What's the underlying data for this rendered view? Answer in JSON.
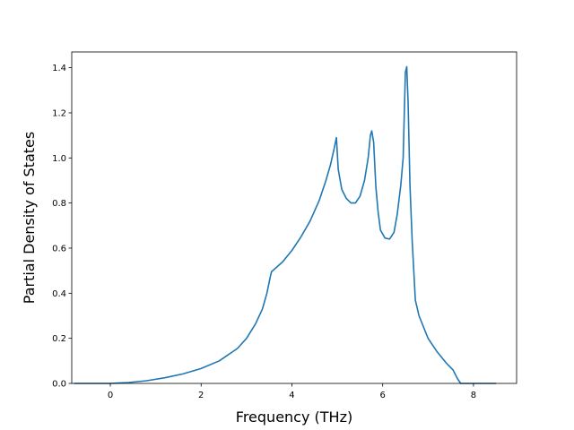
{
  "chart_data": {
    "type": "line",
    "title": "",
    "xlabel": "Frequency (THz)",
    "ylabel": "Partial Density of States",
    "xlim": [
      -0.85,
      8.95
    ],
    "ylim": [
      0.0,
      1.47
    ],
    "xticks": [
      0,
      2,
      4,
      6,
      8
    ],
    "xtick_labels": [
      "0",
      "2",
      "4",
      "6",
      "8"
    ],
    "yticks": [
      0.0,
      0.2,
      0.4,
      0.6,
      0.8,
      1.0,
      1.2,
      1.4
    ],
    "ytick_labels": [
      "0.0",
      "0.2",
      "0.4",
      "0.6",
      "0.8",
      "1.0",
      "1.2",
      "1.4"
    ],
    "grid": false,
    "legend": "none",
    "series": [
      {
        "color": "#1f77b4",
        "x": [
          -0.8,
          -0.4,
          0.0,
          0.4,
          0.8,
          1.2,
          1.6,
          2.0,
          2.4,
          2.8,
          3.0,
          3.2,
          3.35,
          3.45,
          3.52,
          3.55,
          3.8,
          4.0,
          4.2,
          4.4,
          4.6,
          4.75,
          4.85,
          4.93,
          4.98,
          5.02,
          5.1,
          5.2,
          5.3,
          5.4,
          5.5,
          5.6,
          5.68,
          5.73,
          5.76,
          5.8,
          5.85,
          5.9,
          5.95,
          6.05,
          6.15,
          6.25,
          6.32,
          6.4,
          6.45,
          6.5,
          6.53,
          6.56,
          6.6,
          6.65,
          6.72,
          6.8,
          7.0,
          7.2,
          7.4,
          7.55,
          7.65,
          7.72,
          7.8,
          8.2,
          8.5
        ],
        "values": [
          0.0,
          0.0,
          0.0,
          0.004,
          0.012,
          0.025,
          0.042,
          0.066,
          0.1,
          0.155,
          0.2,
          0.265,
          0.33,
          0.4,
          0.47,
          0.495,
          0.54,
          0.59,
          0.65,
          0.72,
          0.81,
          0.9,
          0.97,
          1.04,
          1.09,
          0.95,
          0.86,
          0.82,
          0.8,
          0.8,
          0.83,
          0.9,
          1.0,
          1.1,
          1.12,
          1.07,
          0.87,
          0.76,
          0.68,
          0.645,
          0.64,
          0.67,
          0.75,
          0.88,
          1.0,
          1.38,
          1.405,
          1.25,
          0.88,
          0.63,
          0.37,
          0.3,
          0.2,
          0.14,
          0.09,
          0.06,
          0.02,
          0.0,
          0.0,
          0.0,
          0.0
        ]
      }
    ]
  }
}
